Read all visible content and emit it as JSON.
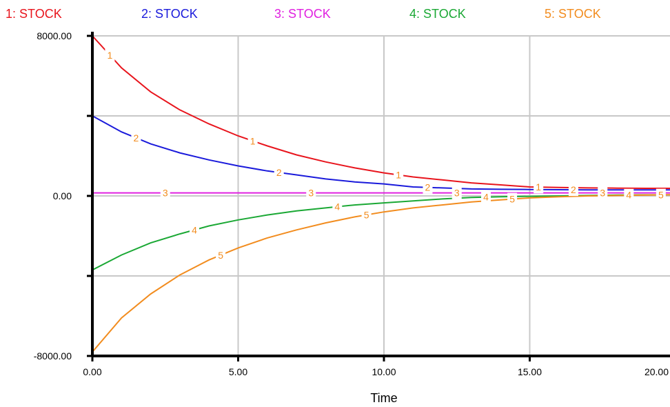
{
  "chart_data": {
    "type": "line",
    "title": "",
    "xlabel": "Time",
    "ylabel": "",
    "xlim": [
      0,
      20
    ],
    "ylim": [
      -8000,
      8000
    ],
    "x_ticks": [
      "0.00",
      "5.00",
      "10.00",
      "15.00",
      "20.00"
    ],
    "y_tick_labels": {
      "max": "8000.00",
      "mid": "0.00",
      "min": "-8000.00"
    },
    "y_ticks": [
      8000,
      4000,
      0,
      -4000,
      -8000
    ],
    "grid": true,
    "legend_position": "top",
    "marker_color": "#f28c1e",
    "series": [
      {
        "name": "1: STOCK",
        "marker": "1",
        "color": "#e8141c",
        "x": [
          0,
          1,
          2,
          3,
          4,
          5,
          6,
          7,
          8,
          9,
          10,
          11,
          12,
          13,
          14,
          15,
          16,
          17,
          18,
          19,
          20
        ],
        "y": [
          8000,
          6400,
          5200,
          4300,
          3600,
          3000,
          2500,
          2050,
          1700,
          1400,
          1150,
          950,
          800,
          650,
          550,
          450,
          420,
          400,
          390,
          380,
          380
        ],
        "marker_x": [
          0.6,
          5.5,
          10.5,
          15.3
        ]
      },
      {
        "name": "2: STOCK",
        "marker": "2",
        "color": "#1a1adb",
        "x": [
          0,
          1,
          2,
          3,
          4,
          5,
          6,
          7,
          8,
          9,
          10,
          11,
          12,
          13,
          14,
          15,
          16,
          17,
          18,
          19,
          20
        ],
        "y": [
          4000,
          3200,
          2600,
          2150,
          1800,
          1500,
          1250,
          1050,
          850,
          700,
          600,
          450,
          400,
          350,
          330,
          320,
          310,
          300,
          300,
          300,
          300
        ],
        "marker_x": [
          1.5,
          6.4,
          11.5,
          16.5
        ]
      },
      {
        "name": "3: STOCK",
        "marker": "3",
        "color": "#e020e0",
        "x": [
          0,
          20
        ],
        "y": [
          150,
          150
        ],
        "marker_x": [
          2.5,
          7.5,
          12.5,
          17.5
        ]
      },
      {
        "name": "4: STOCK",
        "marker": "4",
        "color": "#1aa834",
        "x": [
          0,
          1,
          2,
          3,
          4,
          5,
          6,
          7,
          8,
          9,
          10,
          11,
          12,
          13,
          14,
          15,
          16,
          17,
          18,
          19,
          20
        ],
        "y": [
          -3700,
          -2950,
          -2350,
          -1900,
          -1500,
          -1200,
          -950,
          -750,
          -600,
          -450,
          -350,
          -250,
          -150,
          -80,
          -40,
          -20,
          0,
          20,
          40,
          50,
          60
        ],
        "marker_x": [
          3.5,
          8.4,
          13.5,
          18.4
        ]
      },
      {
        "name": "5: STOCK",
        "marker": "5",
        "color": "#f28c1e",
        "x": [
          0,
          1,
          2,
          3,
          4,
          5,
          6,
          7,
          8,
          9,
          10,
          11,
          12,
          13,
          14,
          15,
          16,
          17,
          18,
          19,
          20
        ],
        "y": [
          -7800,
          -6100,
          -4900,
          -3950,
          -3200,
          -2600,
          -2100,
          -1700,
          -1350,
          -1050,
          -800,
          -600,
          -450,
          -300,
          -200,
          -100,
          -40,
          0,
          20,
          40,
          60
        ],
        "marker_x": [
          4.4,
          9.4,
          14.4,
          19.5
        ]
      }
    ]
  }
}
